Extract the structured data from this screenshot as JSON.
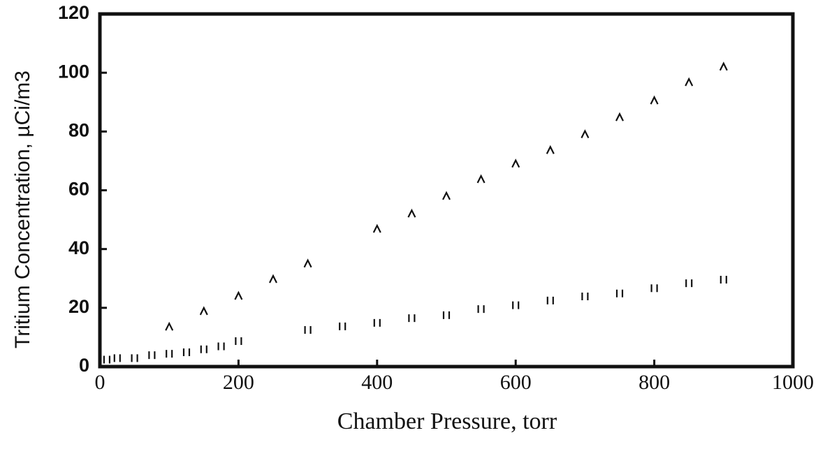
{
  "chart_data": {
    "type": "scatter",
    "xlabel": "Chamber Pressure, torr",
    "ylabel": "Tritium Concentration, µCi/m3",
    "xlim": [
      0,
      1000
    ],
    "xticks": [
      0,
      200,
      400,
      600,
      800,
      1000
    ],
    "ylim": [
      0,
      120
    ],
    "yticks": [
      0,
      20,
      40,
      60,
      80,
      100,
      120
    ],
    "grid": false,
    "series": [
      {
        "marker": "triangle",
        "color": "#111111",
        "x": [
          100,
          150,
          200,
          250,
          300,
          400,
          450,
          500,
          550,
          600,
          650,
          700,
          750,
          800,
          850,
          900
        ],
        "values": [
          13.5,
          18.8,
          24,
          29.7,
          35,
          46.8,
          52,
          58,
          63.7,
          69,
          73.6,
          79,
          84.8,
          90.5,
          96.7,
          102
        ]
      },
      {
        "marker": "square",
        "color": "#111111",
        "x": [
          10,
          25,
          50,
          75,
          100,
          125,
          150,
          175,
          200,
          300,
          350,
          400,
          450,
          500,
          550,
          600,
          650,
          700,
          750,
          800,
          850,
          900
        ],
        "values": [
          2.5,
          3,
          3,
          4,
          4.5,
          5,
          6,
          7,
          8.8,
          12.6,
          13.8,
          15,
          16.6,
          17.6,
          19.7,
          21,
          22.6,
          24,
          25,
          26.8,
          28.5,
          29.7
        ]
      }
    ]
  }
}
